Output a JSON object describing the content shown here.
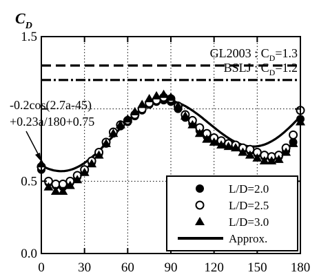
{
  "chart_data": {
    "type": "scatter",
    "ylabel_main": "C",
    "ylabel_sub": "D",
    "xlim": [
      0,
      180
    ],
    "ylim": [
      0.0,
      1.5
    ],
    "x_ticks": [
      "0",
      "30",
      "60",
      "90",
      "120",
      "150",
      "180"
    ],
    "y_ticks": [
      "0.0",
      "0.5",
      "1.0",
      "1.5"
    ],
    "y_ticks_shown": [
      "0.0",
      "0.5",
      "1.5"
    ],
    "grid": "dotted",
    "reference_lines": [
      {
        "label_prefix": "GL2003 : C",
        "label_sub": "D",
        "label_suffix": "=1.3",
        "value": 1.3,
        "style": "dashed"
      },
      {
        "label_prefix": "BSLJ : C",
        "label_sub": "D",
        "label_suffix": "=1.2",
        "value": 1.2,
        "style": "dash-dot"
      }
    ],
    "formula_annotation": [
      "-0.2cos(2.7a-45)",
      "+0.23a/180+0.75"
    ],
    "series": [
      {
        "name": "L/D=2.0",
        "marker": "filled-circle",
        "x": [
          0,
          5,
          10,
          15,
          20,
          25,
          30,
          35,
          40,
          45,
          50,
          55,
          60,
          65,
          70,
          75,
          80,
          85,
          90,
          95,
          100,
          105,
          110,
          115,
          120,
          125,
          130,
          135,
          140,
          145,
          150,
          155,
          160,
          165,
          170,
          175,
          180
        ],
        "y": [
          0.58,
          0.49,
          0.47,
          0.46,
          0.49,
          0.53,
          0.57,
          0.63,
          0.69,
          0.76,
          0.83,
          0.88,
          0.91,
          0.95,
          0.99,
          1.03,
          1.05,
          1.06,
          1.05,
          1.0,
          0.94,
          0.9,
          0.85,
          0.81,
          0.79,
          0.76,
          0.75,
          0.74,
          0.72,
          0.71,
          0.69,
          0.67,
          0.66,
          0.67,
          0.71,
          0.77,
          0.93
        ]
      },
      {
        "name": "L/D=2.5",
        "marker": "open-circle",
        "x": [
          0,
          5,
          10,
          15,
          20,
          25,
          30,
          35,
          40,
          45,
          50,
          55,
          60,
          65,
          70,
          75,
          80,
          85,
          90,
          95,
          100,
          105,
          110,
          115,
          120,
          125,
          130,
          135,
          140,
          145,
          150,
          155,
          160,
          165,
          170,
          175,
          180
        ],
        "y": [
          0.6,
          0.5,
          0.48,
          0.48,
          0.5,
          0.54,
          0.58,
          0.64,
          0.7,
          0.77,
          0.84,
          0.89,
          0.92,
          0.96,
          1.0,
          1.04,
          1.06,
          1.08,
          1.07,
          1.02,
          0.96,
          0.92,
          0.87,
          0.83,
          0.8,
          0.78,
          0.76,
          0.75,
          0.73,
          0.72,
          0.7,
          0.68,
          0.67,
          0.68,
          0.73,
          0.82,
          0.99
        ]
      },
      {
        "name": "L/D=3.0",
        "marker": "filled-triangle",
        "x": [
          0,
          5,
          10,
          15,
          20,
          25,
          30,
          35,
          40,
          45,
          50,
          55,
          60,
          65,
          70,
          75,
          80,
          85,
          90,
          95,
          100,
          105,
          110,
          115,
          120,
          125,
          130,
          135,
          140,
          145,
          150,
          155,
          160,
          165,
          170,
          175,
          180
        ],
        "y": [
          0.62,
          0.46,
          0.43,
          0.43,
          0.47,
          0.51,
          0.56,
          0.62,
          0.68,
          0.76,
          0.83,
          0.89,
          0.93,
          0.98,
          1.03,
          1.07,
          1.09,
          1.1,
          1.08,
          1.02,
          0.95,
          0.89,
          0.83,
          0.79,
          0.77,
          0.75,
          0.74,
          0.73,
          0.7,
          0.68,
          0.66,
          0.64,
          0.64,
          0.65,
          0.7,
          0.76,
          0.91
        ]
      },
      {
        "name": "Approx.",
        "marker": "line",
        "formula": "-0.2cos(2.7a-45)+0.23a/180+0.75"
      }
    ],
    "legend": {
      "placement": "bottom-right"
    }
  }
}
